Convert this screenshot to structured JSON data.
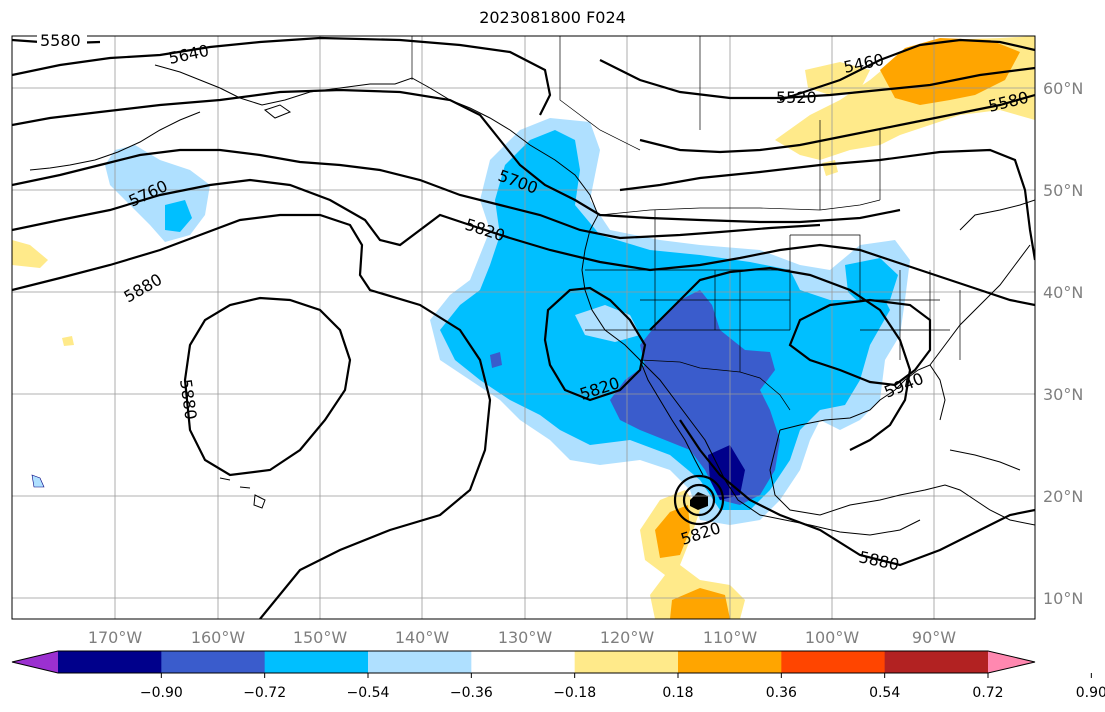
{
  "title": "2023081800 F024",
  "lon_labels": [
    "170°W",
    "160°W",
    "150°W",
    "140°W",
    "130°W",
    "120°W",
    "110°W",
    "100°W",
    "90°W"
  ],
  "lat_labels": [
    "60°N",
    "50°N",
    "40°N",
    "30°N",
    "20°N",
    "10°N"
  ],
  "contour_labels": [
    "5580",
    "5640",
    "5460",
    "5520",
    "5580",
    "5700",
    "5760",
    "5820",
    "5880",
    "5880",
    "5820",
    "5940",
    "5820",
    "5880"
  ],
  "colorbar": {
    "ticks": [
      "−0.90",
      "−0.72",
      "−0.54",
      "−0.36",
      "−0.18",
      "0.18",
      "0.36",
      "0.54",
      "0.72",
      "0.90"
    ],
    "colors": [
      "#9b30d0",
      "#00008b",
      "#3a5ccc",
      "#00bfff",
      "#afe0ff",
      "#ffffff",
      "#ffea8a",
      "#ffa500",
      "#ff4500",
      "#b22222",
      "#ff88b0"
    ]
  }
}
